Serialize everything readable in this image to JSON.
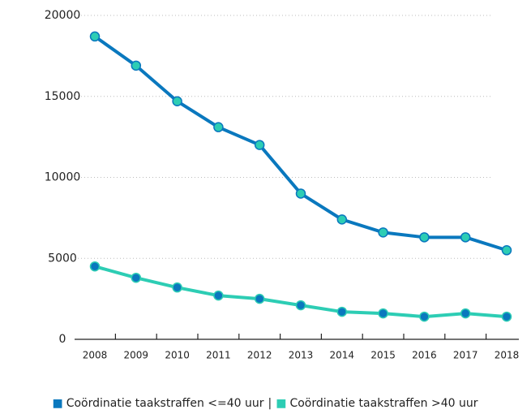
{
  "chart_data": {
    "type": "line",
    "categories": [
      "2008",
      "2009",
      "2010",
      "2011",
      "2012",
      "2013",
      "2014",
      "2015",
      "2016",
      "2017",
      "2018"
    ],
    "series": [
      {
        "name": "Coördinatie taakstraffen <=40 uur",
        "color": "#0a78be",
        "marker_color": "#2dcdb4",
        "values": [
          18700,
          16900,
          14700,
          13100,
          12000,
          9000,
          7400,
          6600,
          6300,
          6300,
          5500
        ]
      },
      {
        "name": "Coördinatie taakstraffen >40 uur",
        "color": "#2dcdb4",
        "marker_color": "#0a78be",
        "values": [
          4500,
          3800,
          3200,
          2700,
          2500,
          2100,
          1700,
          1600,
          1400,
          1600,
          1400
        ]
      }
    ],
    "legend_separator": "|",
    "ylim": [
      0,
      20000
    ],
    "yticks": [
      0,
      5000,
      10000,
      15000,
      20000
    ],
    "grid": true
  }
}
